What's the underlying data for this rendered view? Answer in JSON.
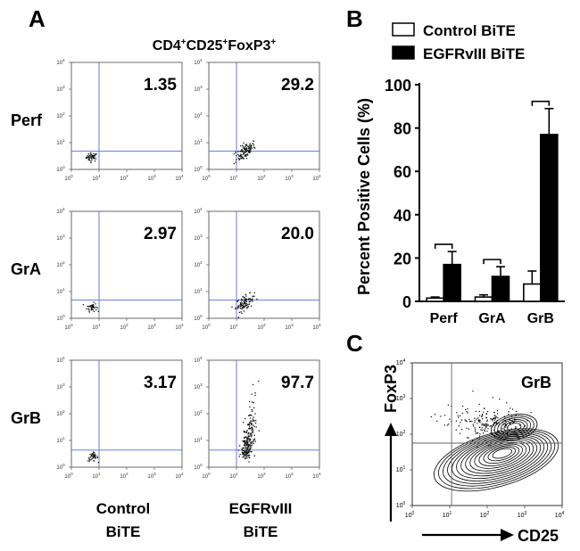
{
  "panels": {
    "a": {
      "letter": "A",
      "title_main": "CD4",
      "title_sup1": "+",
      "title_mid1": "CD25",
      "title_sup2": "+",
      "title_mid2": "FoxP3",
      "title_sup3": "+",
      "row_labels": [
        "Perf",
        "GrA",
        "GrB"
      ],
      "col_labels_line1": [
        "Control",
        "EGFRvIII"
      ],
      "col_labels_line2": [
        "BiTE",
        "BiTE"
      ],
      "percentages": [
        [
          "1.35",
          "29.2"
        ],
        [
          "2.97",
          "20.0"
        ],
        [
          "3.17",
          "97.7"
        ]
      ],
      "tick_label": "10",
      "tick_exponents": [
        "0",
        "1",
        "2",
        "3",
        "4"
      ]
    },
    "b": {
      "letter": "B"
    },
    "c": {
      "letter": "C"
    }
  },
  "colors": {
    "gate_line": "#5a6fd0",
    "control_bar": "#ffffff",
    "egfr_bar": "#000000"
  },
  "chart_data": [
    {
      "type": "bar",
      "title": "",
      "categories": [
        "Perf",
        "GrA",
        "GrB"
      ],
      "series": [
        {
          "name": "Control BiTE",
          "values": [
            1.5,
            2,
            8
          ],
          "errors": [
            0.5,
            1,
            6
          ]
        },
        {
          "name": "EGFRvIII BiTE",
          "values": [
            17,
            11.5,
            77
          ],
          "errors": [
            6,
            4.5,
            12
          ]
        }
      ],
      "xlabel": "",
      "ylabel": "Percent Positive Cells (%)",
      "ylim": [
        0,
        100
      ],
      "yticks": [
        0,
        20,
        40,
        60,
        80,
        100
      ],
      "significance_brackets": [
        "Perf",
        "GrA",
        "GrB"
      ],
      "legend": "top"
    },
    {
      "type": "scatter",
      "title": "GrB",
      "xlabel": "CD25",
      "ylabel": "FoxP3",
      "xlim_log10": [
        0,
        4
      ],
      "ylim_log10": [
        0,
        4
      ],
      "gate_x_log10": 1.05,
      "gate_y_log10": 1.75,
      "description": "contour density plot"
    }
  ]
}
